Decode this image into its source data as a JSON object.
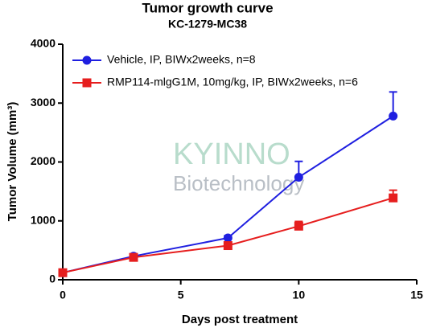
{
  "chart_data": {
    "type": "line",
    "title": "Tumor growth curve",
    "subtitle": "KC-1279-MC38",
    "x_label": "Days post treatment",
    "y_label": "Tumor Volume (mm³)",
    "watermark": [
      "KYINNO",
      "Biotechnology"
    ],
    "xlim": [
      0,
      15
    ],
    "xticks": [
      0,
      5,
      10,
      15
    ],
    "ylim": [
      0,
      4000
    ],
    "yticks": [
      0,
      1000,
      2000,
      3000,
      4000
    ],
    "grid": false,
    "legend": "top-left",
    "series": [
      {
        "name": "Vehicle, IP, BIWx2weeks, n=8",
        "color": "#1f1fe0",
        "marker": "circle",
        "x": [
          0,
          3,
          7,
          10,
          14
        ],
        "values": [
          120,
          400,
          710,
          1740,
          2780
        ],
        "errors": [
          20,
          30,
          40,
          270,
          410
        ]
      },
      {
        "name": "RMP114-mlgG1M, 10mg/kg, IP, BIWx2weeks, n=6",
        "color": "#e61e1e",
        "marker": "square",
        "x": [
          0,
          3,
          7,
          10,
          14
        ],
        "values": [
          120,
          380,
          580,
          910,
          1390
        ],
        "errors": [
          20,
          30,
          40,
          80,
          130
        ]
      }
    ]
  }
}
